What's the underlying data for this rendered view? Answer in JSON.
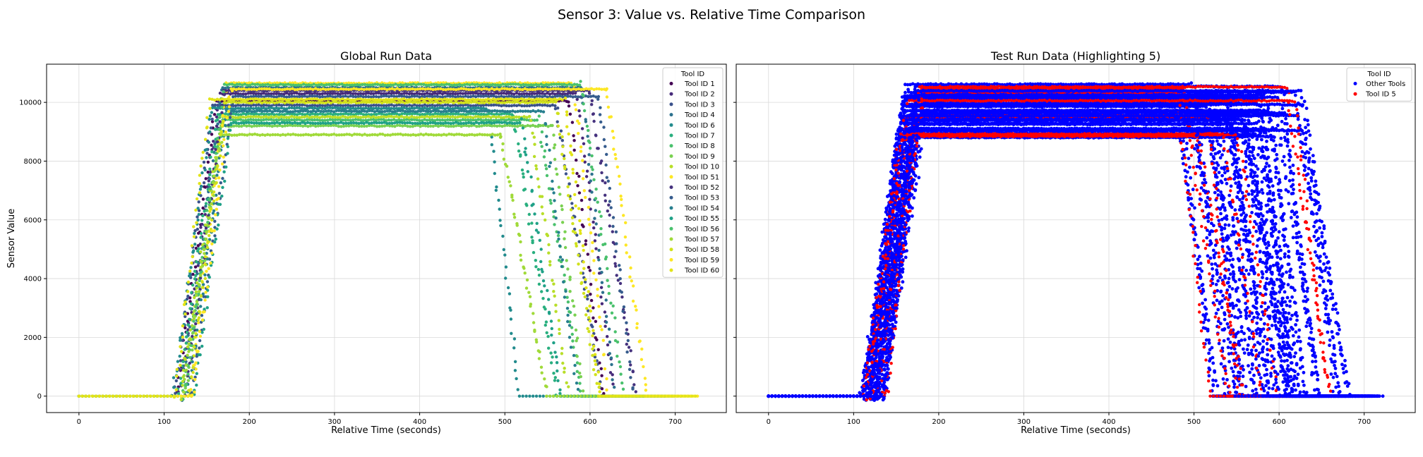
{
  "figure": {
    "suptitle": "Sensor 3: Value vs. Relative Time Comparison"
  },
  "chart_data": [
    {
      "type": "scatter",
      "title": "Global Run Data",
      "xlabel": "Relative Time (seconds)",
      "ylabel": "Sensor Value",
      "xlim": [
        -38,
        760
      ],
      "ylim": [
        -560,
        11300
      ],
      "xticks": [
        "0",
        "100",
        "200",
        "300",
        "400",
        "500",
        "600",
        "700"
      ],
      "yticks": [
        "0",
        "2000",
        "4000",
        "6000",
        "8000",
        "10000"
      ],
      "grid": true,
      "legend": {
        "title": "Tool ID",
        "placement": "top-right",
        "entries": [
          "Tool ID 1",
          "Tool ID 2",
          "Tool ID 3",
          "Tool ID 4",
          "Tool ID 6",
          "Tool ID 7",
          "Tool ID 8",
          "Tool ID 9",
          "Tool ID 10",
          "Tool ID 51",
          "Tool ID 52",
          "Tool ID 53",
          "Tool ID 54",
          "Tool ID 55",
          "Tool ID 56",
          "Tool ID 57",
          "Tool ID 58",
          "Tool ID 59",
          "Tool ID 60"
        ]
      },
      "series_colors": [
        "#440154",
        "#472a7a",
        "#3b518b",
        "#2c718e",
        "#228b8d",
        "#29af7f",
        "#4ac16d",
        "#7ad151",
        "#b8de29",
        "#fde725",
        "#46327e",
        "#365c8d",
        "#277f8e",
        "#1fa187",
        "#4ac16d",
        "#a0da39",
        "#d0e11c",
        "#fde725",
        "#e2e418"
      ],
      "series_shape": [
        {
          "rise_start": 115,
          "plateau": 10050,
          "fall_start": 575,
          "end": 650
        },
        {
          "rise_start": 118,
          "plateau": 10300,
          "fall_start": 585,
          "end": 660
        },
        {
          "rise_start": 112,
          "plateau": 9900,
          "fall_start": 560,
          "end": 645
        },
        {
          "rise_start": 120,
          "plateau": 10500,
          "fall_start": 590,
          "end": 655
        },
        {
          "rise_start": 110,
          "plateau": 9800,
          "fall_start": 480,
          "end": 600
        },
        {
          "rise_start": 116,
          "plateau": 9600,
          "fall_start": 510,
          "end": 620
        },
        {
          "rise_start": 122,
          "plateau": 9400,
          "fall_start": 540,
          "end": 640
        },
        {
          "rise_start": 125,
          "plateau": 9200,
          "fall_start": 555,
          "end": 660
        },
        {
          "rise_start": 119,
          "plateau": 9500,
          "fall_start": 530,
          "end": 650
        },
        {
          "rise_start": 130,
          "plateau": 10650,
          "fall_start": 580,
          "end": 700
        },
        {
          "rise_start": 126,
          "plateau": 10400,
          "fall_start": 600,
          "end": 710
        },
        {
          "rise_start": 132,
          "plateau": 10200,
          "fall_start": 610,
          "end": 690
        },
        {
          "rise_start": 128,
          "plateau": 9700,
          "fall_start": 545,
          "end": 680
        },
        {
          "rise_start": 135,
          "plateau": 9300,
          "fall_start": 520,
          "end": 690
        },
        {
          "rise_start": 124,
          "plateau": 10600,
          "fall_start": 590,
          "end": 700
        },
        {
          "rise_start": 121,
          "plateau": 8900,
          "fall_start": 495,
          "end": 670
        },
        {
          "rise_start": 129,
          "plateau": 10000,
          "fall_start": 560,
          "end": 720
        },
        {
          "rise_start": 133,
          "plateau": 10450,
          "fall_start": 620,
          "end": 730
        },
        {
          "rise_start": 113,
          "plateau": 10100,
          "fall_start": 570,
          "end": 725
        }
      ]
    },
    {
      "type": "scatter",
      "title": "Test Run Data (Highlighting 5)",
      "xlabel": "Relative Time (seconds)",
      "ylabel": "",
      "xlim": [
        -38,
        760
      ],
      "ylim": [
        -560,
        11300
      ],
      "xticks": [
        "0",
        "100",
        "200",
        "300",
        "400",
        "500",
        "600",
        "700"
      ],
      "grid": true,
      "legend": {
        "title": "Tool ID",
        "placement": "top-right",
        "entries": [
          "Other Tools",
          "Tool ID 5"
        ]
      },
      "series_colors": [
        "#0000ff",
        "#ff0000"
      ]
    }
  ]
}
